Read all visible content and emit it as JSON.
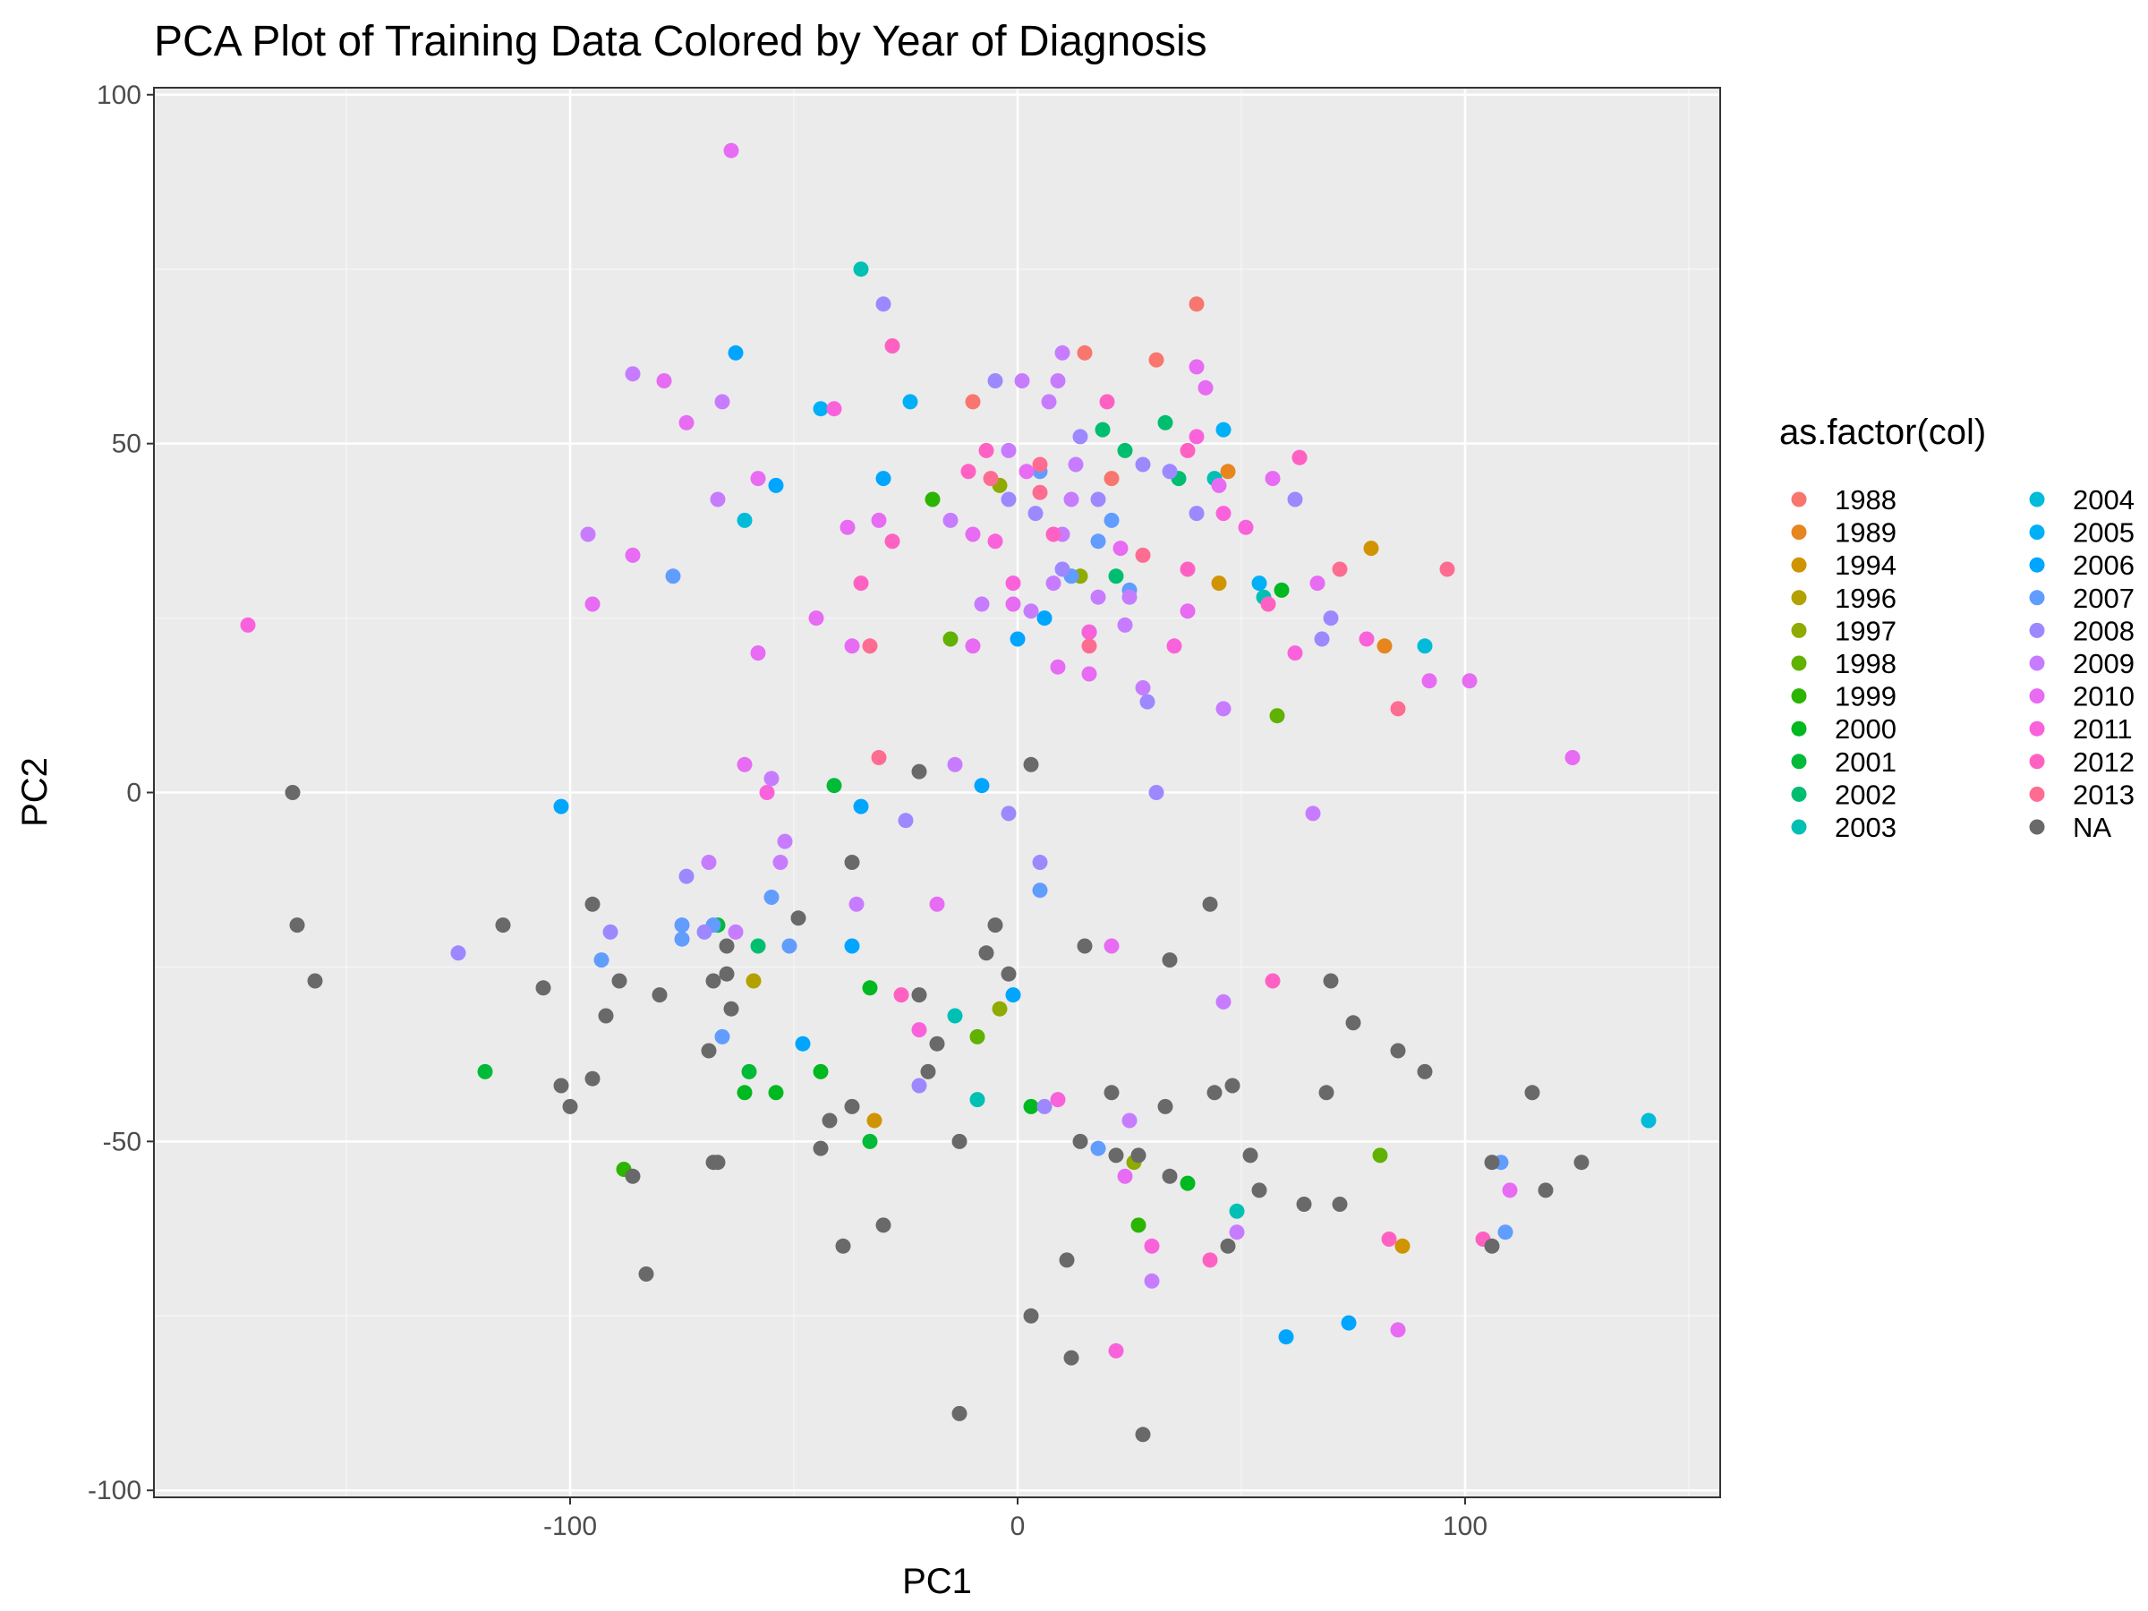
{
  "chart_data": {
    "type": "scatter",
    "title": "PCA Plot of Training Data Colored by Year of Diagnosis",
    "xlabel": "PC1",
    "ylabel": "PC2",
    "xlim": [
      -193,
      157
    ],
    "ylim": [
      -101,
      101
    ],
    "xticks": [
      -100,
      0,
      100
    ],
    "xtick_labels": [
      "-100",
      "0",
      "100"
    ],
    "yticks": [
      -100,
      -50,
      0,
      50,
      100
    ],
    "ytick_labels": [
      "-100",
      "-50",
      "0",
      "50",
      "100"
    ],
    "grid": true,
    "legend": {
      "title": "as.factor(col)",
      "placement": "right",
      "columns": 2
    },
    "series": [
      {
        "name": "1988",
        "color": "#F8766D",
        "points": [
          [
            -10,
            56
          ],
          [
            15,
            63
          ],
          [
            31,
            62
          ],
          [
            40,
            70
          ],
          [
            21,
            45
          ]
        ]
      },
      {
        "name": "1989",
        "color": "#E7851E",
        "points": [
          [
            47,
            46
          ],
          [
            82,
            21
          ]
        ]
      },
      {
        "name": "1994",
        "color": "#D09400",
        "points": [
          [
            79,
            35
          ],
          [
            45,
            30
          ],
          [
            -32,
            -47
          ],
          [
            86,
            -65
          ]
        ]
      },
      {
        "name": "1996",
        "color": "#B2A100",
        "points": [
          [
            -59,
            -27
          ]
        ]
      },
      {
        "name": "1997",
        "color": "#8FAA00",
        "points": [
          [
            14,
            31
          ],
          [
            -4,
            44
          ],
          [
            -4,
            -31
          ],
          [
            26,
            -53
          ]
        ]
      },
      {
        "name": "1998",
        "color": "#61B100",
        "points": [
          [
            -15,
            22
          ],
          [
            58,
            11
          ],
          [
            -9,
            -35
          ],
          [
            81,
            -52
          ]
        ]
      },
      {
        "name": "1999",
        "color": "#2BB500",
        "points": [
          [
            -19,
            42
          ],
          [
            -88,
            -54
          ],
          [
            27,
            -62
          ]
        ]
      },
      {
        "name": "2000",
        "color": "#00B81F",
        "points": [
          [
            59,
            29
          ],
          [
            -33,
            -28
          ],
          [
            -61,
            -43
          ],
          [
            -54,
            -43
          ],
          [
            -44,
            -40
          ],
          [
            3,
            -45
          ],
          [
            38,
            -56
          ]
        ]
      },
      {
        "name": "2001",
        "color": "#00BA38",
        "points": [
          [
            -41,
            1
          ],
          [
            -67,
            -19
          ],
          [
            -119,
            -40
          ],
          [
            -60,
            -40
          ],
          [
            -33,
            -50
          ]
        ]
      },
      {
        "name": "2002",
        "color": "#00BE70",
        "points": [
          [
            36,
            45
          ],
          [
            19,
            52
          ],
          [
            -58,
            -22
          ],
          [
            33,
            53
          ],
          [
            24,
            49
          ],
          [
            22,
            31
          ]
        ]
      },
      {
        "name": "2003",
        "color": "#00C0B4",
        "points": [
          [
            44,
            45
          ],
          [
            -35,
            75
          ],
          [
            -14,
            -32
          ],
          [
            -9,
            -44
          ],
          [
            49,
            -60
          ],
          [
            55,
            28
          ]
        ]
      },
      {
        "name": "2004",
        "color": "#00BCD8",
        "points": [
          [
            -61,
            39
          ],
          [
            91,
            21
          ],
          [
            141,
            -47
          ]
        ]
      },
      {
        "name": "2005",
        "color": "#00B0F6",
        "points": [
          [
            -44,
            55
          ],
          [
            -24,
            56
          ],
          [
            46,
            52
          ],
          [
            54,
            30
          ]
        ]
      },
      {
        "name": "2006",
        "color": "#00A5FF",
        "points": [
          [
            -63,
            63
          ],
          [
            -54,
            44
          ],
          [
            -30,
            45
          ],
          [
            0,
            22
          ],
          [
            6,
            25
          ],
          [
            16,
            23
          ],
          [
            -102,
            -2
          ],
          [
            -35,
            -2
          ],
          [
            -8,
            1
          ],
          [
            -37,
            -22
          ],
          [
            -48,
            -36
          ],
          [
            -1,
            -29
          ],
          [
            60,
            -78
          ],
          [
            74,
            -76
          ]
        ]
      },
      {
        "name": "2007",
        "color": "#619CFF",
        "points": [
          [
            -77,
            31
          ],
          [
            18,
            36
          ],
          [
            5,
            46
          ],
          [
            12,
            31
          ],
          [
            25,
            29
          ],
          [
            21,
            39
          ],
          [
            -75,
            -19
          ],
          [
            -55,
            -15
          ],
          [
            -75,
            -21
          ],
          [
            -93,
            -24
          ],
          [
            -68,
            -19
          ],
          [
            -51,
            -22
          ],
          [
            5,
            -14
          ],
          [
            -66,
            -35
          ],
          [
            18,
            -51
          ],
          [
            108,
            -53
          ],
          [
            109,
            -63
          ]
        ]
      },
      {
        "name": "2008",
        "color": "#9D88FF",
        "points": [
          [
            -30,
            70
          ],
          [
            -5,
            59
          ],
          [
            14,
            51
          ],
          [
            62,
            42
          ],
          [
            40,
            40
          ],
          [
            -2,
            42
          ],
          [
            4,
            40
          ],
          [
            28,
            47
          ],
          [
            34,
            46
          ],
          [
            18,
            42
          ],
          [
            10,
            32
          ],
          [
            70,
            25
          ],
          [
            68,
            22
          ],
          [
            29,
            13
          ],
          [
            31,
            0
          ],
          [
            -25,
            -4
          ],
          [
            -2,
            -3
          ],
          [
            5,
            -10
          ],
          [
            -74,
            -12
          ],
          [
            -91,
            -20
          ],
          [
            -70,
            -20
          ],
          [
            -125,
            -23
          ],
          [
            -22,
            -42
          ],
          [
            6,
            -45
          ]
        ]
      },
      {
        "name": "2009",
        "color": "#C77CFF",
        "points": [
          [
            -86,
            60
          ],
          [
            -66,
            56
          ],
          [
            -67,
            42
          ],
          [
            -96,
            37
          ],
          [
            9,
            59
          ],
          [
            1,
            59
          ],
          [
            10,
            63
          ],
          [
            -2,
            49
          ],
          [
            7,
            56
          ],
          [
            -15,
            39
          ],
          [
            10,
            37
          ],
          [
            -8,
            27
          ],
          [
            3,
            26
          ],
          [
            12,
            42
          ],
          [
            13,
            47
          ],
          [
            18,
            28
          ],
          [
            8,
            30
          ],
          [
            24,
            24
          ],
          [
            25,
            28
          ],
          [
            28,
            15
          ],
          [
            46,
            12
          ],
          [
            66,
            -3
          ],
          [
            -14,
            4
          ],
          [
            -55,
            2
          ],
          [
            -36,
            -16
          ],
          [
            -53,
            -10
          ],
          [
            -63,
            -20
          ],
          [
            -52,
            -7
          ],
          [
            -69,
            -10
          ],
          [
            46,
            -30
          ],
          [
            25,
            -47
          ],
          [
            49,
            -63
          ],
          [
            30,
            -70
          ]
        ]
      },
      {
        "name": "2010",
        "color": "#E76BF3",
        "points": [
          [
            -64,
            92
          ],
          [
            -79,
            59
          ],
          [
            -74,
            53
          ],
          [
            -58,
            45
          ],
          [
            -86,
            34
          ],
          [
            -95,
            27
          ],
          [
            -45,
            25
          ],
          [
            -38,
            38
          ],
          [
            -31,
            39
          ],
          [
            -10,
            37
          ],
          [
            2,
            46
          ],
          [
            9,
            18
          ],
          [
            16,
            17
          ],
          [
            42,
            58
          ],
          [
            40,
            61
          ],
          [
            23,
            35
          ],
          [
            38,
            26
          ],
          [
            45,
            44
          ],
          [
            57,
            45
          ],
          [
            67,
            30
          ],
          [
            92,
            16
          ],
          [
            101,
            16
          ],
          [
            124,
            5
          ],
          [
            -61,
            4
          ],
          [
            -37,
            21
          ],
          [
            -58,
            20
          ],
          [
            -10,
            21
          ],
          [
            -18,
            -16
          ],
          [
            -1,
            27
          ],
          [
            21,
            -22
          ],
          [
            24,
            -55
          ],
          [
            85,
            -77
          ],
          [
            110,
            -57
          ]
        ]
      },
      {
        "name": "2011",
        "color": "#FA62DB",
        "points": [
          [
            -172,
            24
          ],
          [
            -41,
            55
          ],
          [
            -5,
            36
          ],
          [
            -1,
            30
          ],
          [
            16,
            23
          ],
          [
            35,
            21
          ],
          [
            40,
            51
          ],
          [
            46,
            40
          ],
          [
            63,
            48
          ],
          [
            51,
            38
          ],
          [
            62,
            20
          ],
          [
            78,
            22
          ],
          [
            -56,
            0
          ],
          [
            -22,
            -34
          ],
          [
            9,
            -44
          ],
          [
            22,
            -80
          ],
          [
            30,
            -65
          ]
        ]
      },
      {
        "name": "2012",
        "color": "#FF61C3",
        "points": [
          [
            -28,
            64
          ],
          [
            -28,
            36
          ],
          [
            -11,
            46
          ],
          [
            -7,
            49
          ],
          [
            8,
            37
          ],
          [
            20,
            56
          ],
          [
            38,
            49
          ],
          [
            63,
            48
          ],
          [
            38,
            32
          ],
          [
            -35,
            30
          ],
          [
            56,
            27
          ],
          [
            57,
            -27
          ],
          [
            -26,
            -29
          ],
          [
            43,
            -67
          ],
          [
            104,
            -64
          ],
          [
            83,
            -64
          ]
        ]
      },
      {
        "name": "2013",
        "color": "#FF6C91",
        "points": [
          [
            -33,
            21
          ],
          [
            -31,
            5
          ],
          [
            -6,
            45
          ],
          [
            5,
            47
          ],
          [
            5,
            43
          ],
          [
            28,
            34
          ],
          [
            16,
            21
          ],
          [
            72,
            32
          ],
          [
            96,
            32
          ],
          [
            85,
            12
          ]
        ]
      },
      {
        "name": "NA",
        "color": "#696969",
        "points": [
          [
            -162,
            0
          ],
          [
            -161,
            -19
          ],
          [
            -157,
            -27
          ],
          [
            -115,
            -19
          ],
          [
            -106,
            -28
          ],
          [
            -102,
            -42
          ],
          [
            -100,
            -45
          ],
          [
            -95,
            -16
          ],
          [
            -95,
            -41
          ],
          [
            -92,
            -32
          ],
          [
            -89,
            -27
          ],
          [
            -86,
            -55
          ],
          [
            -83,
            -69
          ],
          [
            -80,
            -29
          ],
          [
            -69,
            -37
          ],
          [
            -68,
            -27
          ],
          [
            -68,
            -53
          ],
          [
            -67,
            -53
          ],
          [
            -65,
            -22
          ],
          [
            -65,
            -26
          ],
          [
            -64,
            -31
          ],
          [
            -49,
            -18
          ],
          [
            -44,
            -51
          ],
          [
            -42,
            -47
          ],
          [
            -37,
            -10
          ],
          [
            -37,
            -45
          ],
          [
            -39,
            -65
          ],
          [
            -30,
            -62
          ],
          [
            -22,
            -29
          ],
          [
            -22,
            3
          ],
          [
            -18,
            -36
          ],
          [
            -20,
            -40
          ],
          [
            -13,
            -50
          ],
          [
            -13,
            -89
          ],
          [
            -7,
            -23
          ],
          [
            -5,
            -19
          ],
          [
            -2,
            -26
          ],
          [
            3,
            4
          ],
          [
            3,
            -75
          ],
          [
            11,
            -67
          ],
          [
            12,
            -81
          ],
          [
            14,
            -50
          ],
          [
            15,
            -22
          ],
          [
            21,
            -43
          ],
          [
            22,
            -52
          ],
          [
            27,
            -52
          ],
          [
            28,
            -92
          ],
          [
            33,
            -45
          ],
          [
            34,
            -24
          ],
          [
            34,
            -55
          ],
          [
            43,
            -16
          ],
          [
            44,
            -43
          ],
          [
            48,
            -42
          ],
          [
            47,
            -65
          ],
          [
            52,
            -52
          ],
          [
            54,
            -57
          ],
          [
            64,
            -59
          ],
          [
            69,
            -43
          ],
          [
            70,
            -27
          ],
          [
            72,
            -59
          ],
          [
            75,
            -33
          ],
          [
            85,
            -37
          ],
          [
            91,
            -40
          ],
          [
            106,
            -53
          ],
          [
            106,
            -65
          ],
          [
            115,
            -43
          ],
          [
            118,
            -57
          ],
          [
            126,
            -53
          ]
        ]
      }
    ]
  }
}
